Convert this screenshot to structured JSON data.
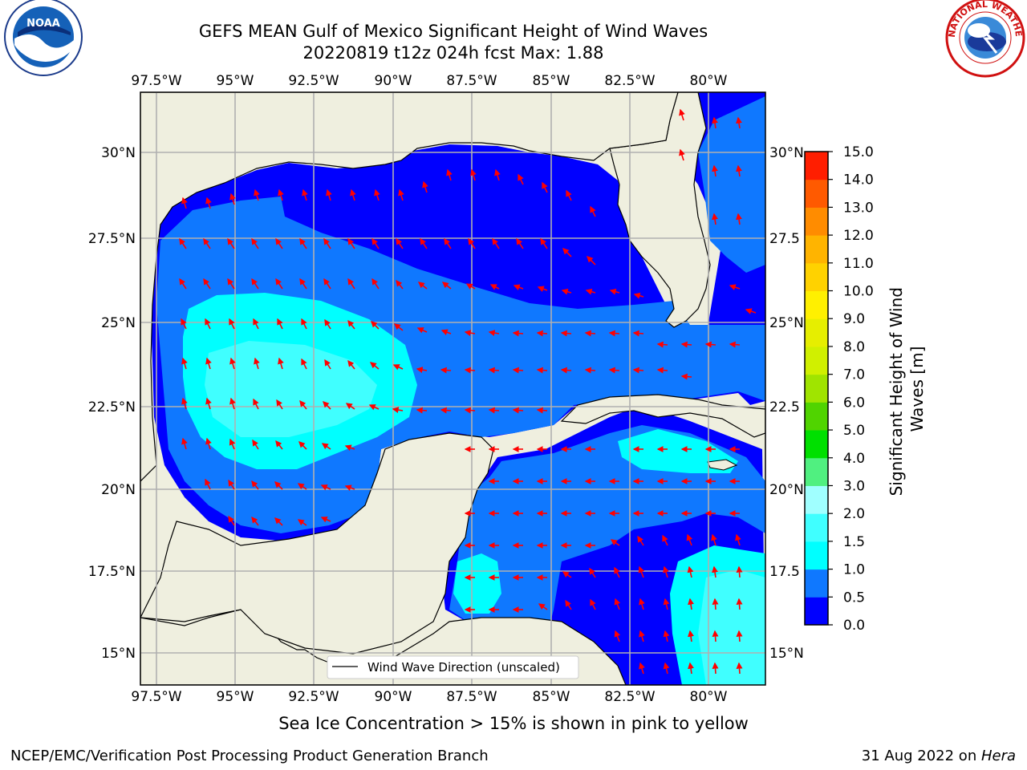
{
  "title": {
    "line1": "GEFS MEAN Gulf of Mexico Significant Height of Wind Waves",
    "line2": "20220819 t12z 024h fcst   Max: 1.88"
  },
  "map": {
    "lon_labels": [
      "97.5°W",
      "95°W",
      "92.5°W",
      "90°W",
      "87.5°W",
      "85°W",
      "82.5°W",
      "80°W"
    ],
    "lat_labels_left": [
      "30°N",
      "27.5°N",
      "25°N",
      "22.5°N",
      "20°N",
      "17.5°N",
      "15°N"
    ],
    "lat_labels_right": [
      "30°N",
      "27.5",
      "25°N",
      "22.5",
      "20°N",
      "17.5",
      "15°N"
    ],
    "legend_label": "Wind Wave Direction (unscaled)",
    "colors": {
      "land": "#efefdf",
      "arrow": "#ff0000",
      "grid": "#b0b0b0"
    }
  },
  "colorbar": {
    "label": "Significant Height of Wind Waves [m]",
    "tick_labels": [
      "0.0",
      "0.5",
      "1.0",
      "1.5",
      "2.0",
      "3.0",
      "4.0",
      "5.0",
      "6.0",
      "7.0",
      "8.0",
      "9.0",
      "10.0",
      "11.0",
      "12.0",
      "13.0",
      "14.0",
      "15.0"
    ],
    "colors": [
      "#0000ff",
      "#0f78ff",
      "#00ffff",
      "#40ffff",
      "#a0ffff",
      "#50f080",
      "#00e000",
      "#50d400",
      "#a0e400",
      "#d0f000",
      "#e6ee00",
      "#fff000",
      "#ffd200",
      "#ffb400",
      "#ff8c00",
      "#ff5a00",
      "#ff1e00"
    ]
  },
  "caption": "Sea Ice Concentration > 15% is shown in pink to yellow",
  "footer": {
    "credit": "NCEP/EMC/Verification Post Processing Product Generation Branch",
    "date": "31 Aug 2022 on ",
    "host": "Hera"
  },
  "logos": {
    "noaa": "NOAA",
    "nws": "NATIONAL WEATHER SERVICE"
  }
}
